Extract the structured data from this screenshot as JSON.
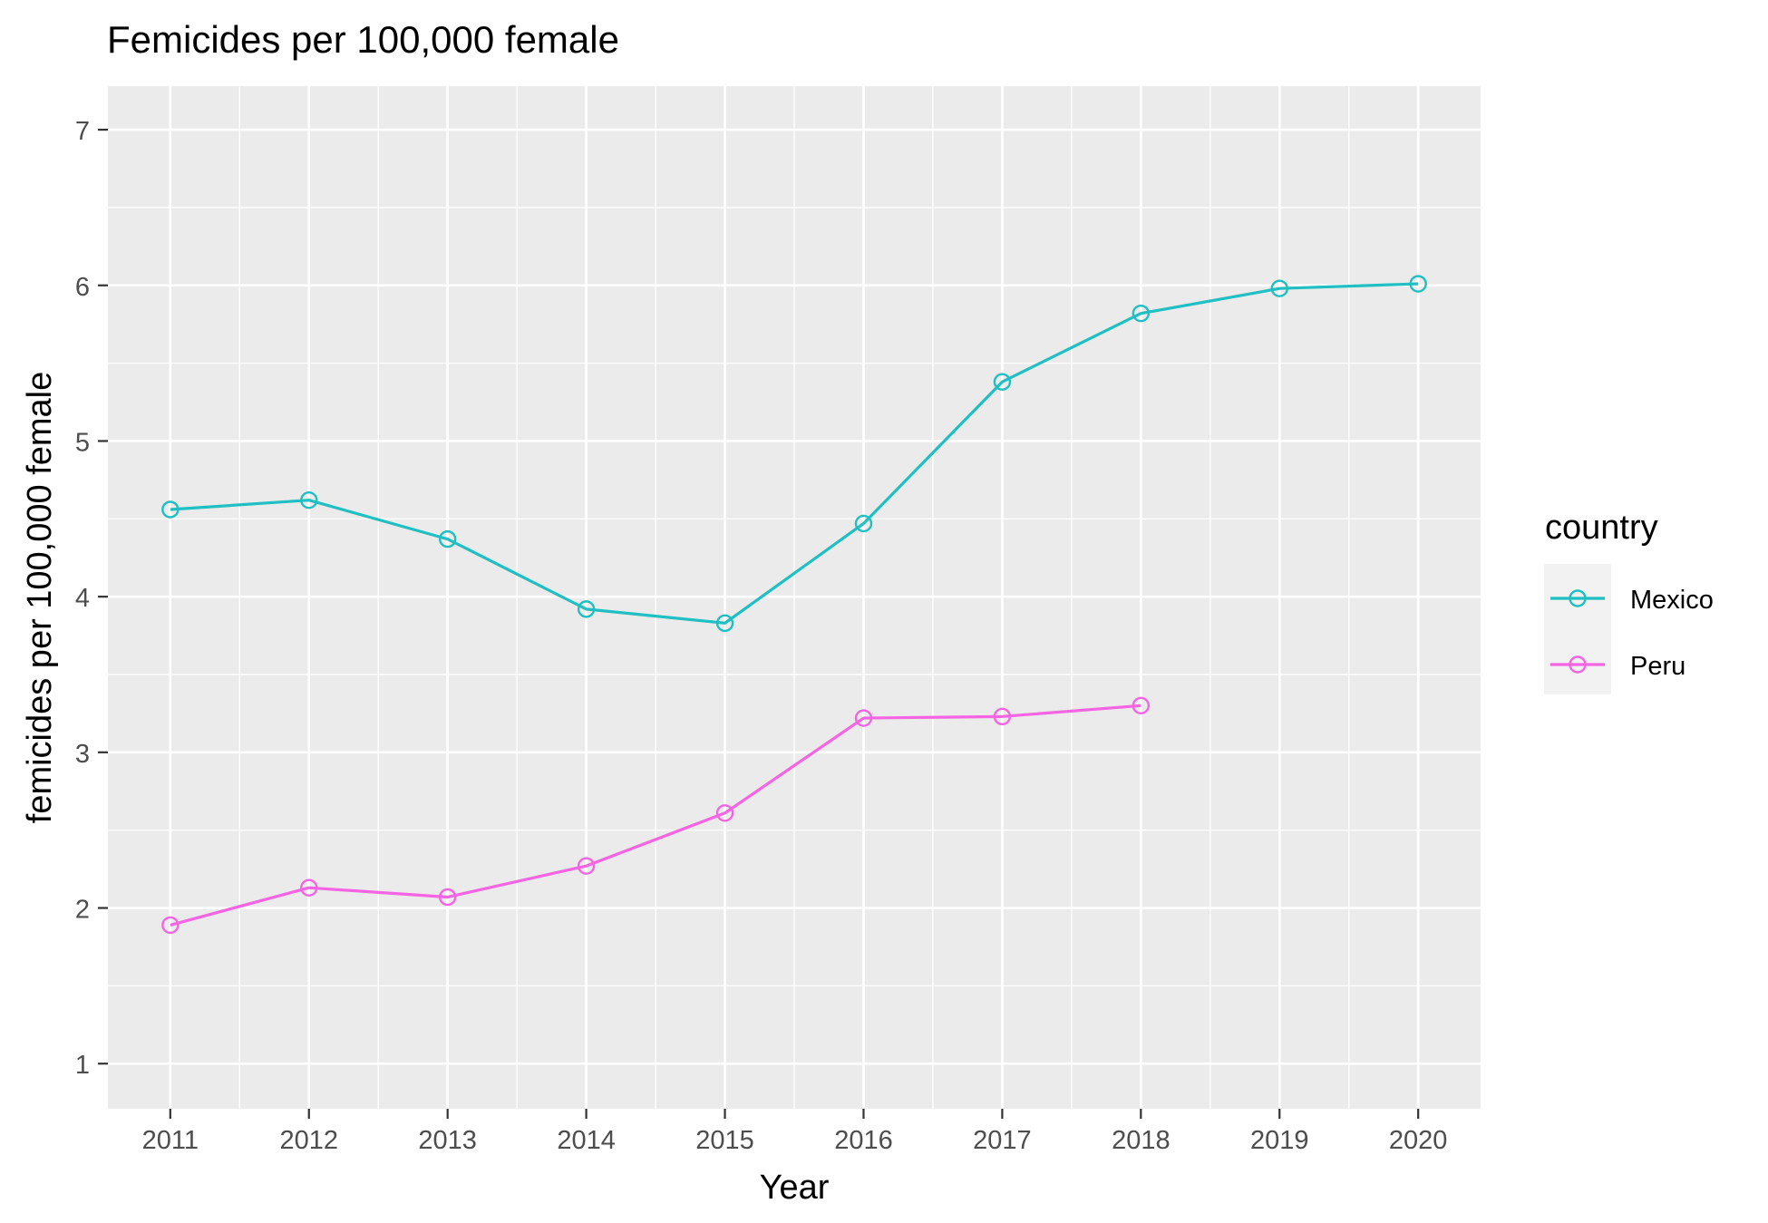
{
  "chart_data": {
    "type": "line",
    "title": "Femicides per 100,000 female",
    "xlabel": "Year",
    "ylabel": "femicides per 100,000 female",
    "x": [
      2011,
      2012,
      2013,
      2014,
      2015,
      2016,
      2017,
      2018,
      2019,
      2020
    ],
    "xticks": [
      "2011",
      "2012",
      "2013",
      "2014",
      "2015",
      "2016",
      "2017",
      "2018",
      "2019",
      "2020"
    ],
    "yticks": [
      "1",
      "2",
      "3",
      "4",
      "5",
      "6",
      "7"
    ],
    "xlim": [
      2010.55,
      2020.45
    ],
    "ylim": [
      0.71,
      7.28
    ],
    "grid": true,
    "legend": {
      "title": "country",
      "position": "right"
    },
    "series": [
      {
        "name": "Mexico",
        "color": "#1FBFC3",
        "x": [
          2011,
          2012,
          2013,
          2014,
          2015,
          2016,
          2017,
          2018,
          2019,
          2020
        ],
        "values": [
          4.56,
          4.62,
          4.37,
          3.92,
          3.83,
          4.47,
          5.38,
          5.82,
          5.98,
          6.01
        ]
      },
      {
        "name": "Peru",
        "color": "#F564E3",
        "x": [
          2011,
          2012,
          2013,
          2014,
          2015,
          2016,
          2017,
          2018
        ],
        "values": [
          1.89,
          2.13,
          2.07,
          2.27,
          2.61,
          3.22,
          3.23,
          3.3
        ]
      }
    ]
  }
}
